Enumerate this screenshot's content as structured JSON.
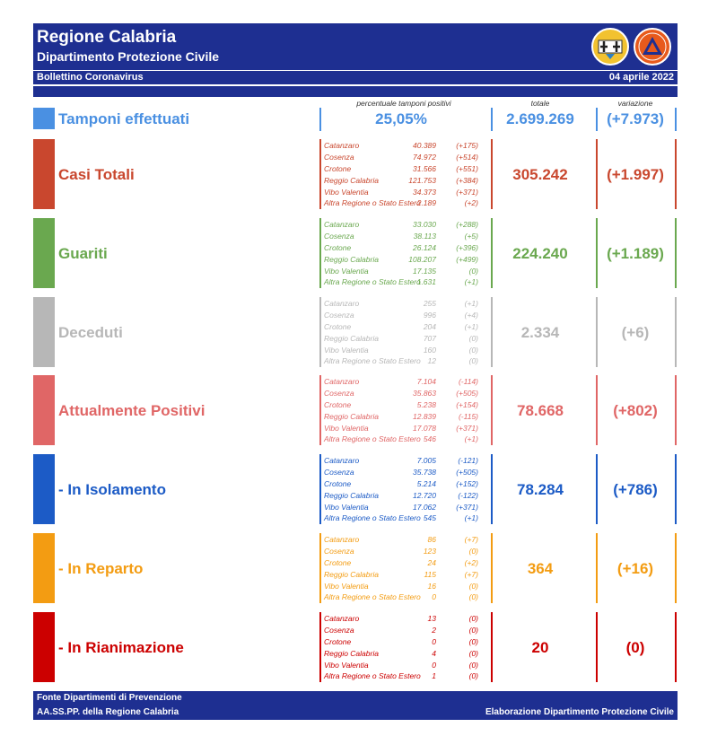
{
  "header": {
    "title": "Regione Calabria",
    "subtitle": "Dipartimento Protezione Civile",
    "bulletin": "Bollettino Coronavirus",
    "date": "04 aprile 2022",
    "logo1_icon": "calabria-crest-icon",
    "logo2_icon": "protezione-civile-logo-icon",
    "logo2_text": "PROTEZIONE CIVILE"
  },
  "columns": {
    "percent_label": "percentuale tamponi positivi",
    "total_label": "totale",
    "variation_label": "variazione"
  },
  "tamponi": {
    "label": "Tamponi effettuati",
    "percent": "25,05%",
    "total": "2.699.269",
    "variation": "(+7.973)",
    "color": "#4a90e2"
  },
  "sections": [
    {
      "key": "casi",
      "label": "Casi Totali",
      "color": "#c9472e",
      "total": "305.242",
      "variation": "(+1.997)",
      "provinces": [
        {
          "name": "Catanzaro",
          "value": "40.389",
          "delta": "(+175)"
        },
        {
          "name": "Cosenza",
          "value": "74.972",
          "delta": "(+514)"
        },
        {
          "name": "Crotone",
          "value": "31.566",
          "delta": "(+551)"
        },
        {
          "name": "Reggio Calabria",
          "value": "121.753",
          "delta": "(+384)"
        },
        {
          "name": "Vibo Valentia",
          "value": "34.373",
          "delta": "(+371)"
        },
        {
          "name": "Altra Regione o Stato Estero",
          "value": "2.189",
          "delta": "(+2)"
        }
      ]
    },
    {
      "key": "guariti",
      "label": "Guariti",
      "color": "#6aa84f",
      "total": "224.240",
      "variation": "(+1.189)",
      "provinces": [
        {
          "name": "Catanzaro",
          "value": "33.030",
          "delta": "(+288)"
        },
        {
          "name": "Cosenza",
          "value": "38.113",
          "delta": "(+5)"
        },
        {
          "name": "Crotone",
          "value": "26.124",
          "delta": "(+396)"
        },
        {
          "name": "Reggio Calabria",
          "value": "108.207",
          "delta": "(+499)"
        },
        {
          "name": "Vibo Valentia",
          "value": "17.135",
          "delta": "(0)"
        },
        {
          "name": "Altra Regione o Stato Estero",
          "value": "1.631",
          "delta": "(+1)"
        }
      ]
    },
    {
      "key": "deceduti",
      "label": "Deceduti",
      "color": "#b7b7b7",
      "total": "2.334",
      "variation": "(+6)",
      "provinces": [
        {
          "name": "Catanzaro",
          "value": "255",
          "delta": "(+1)"
        },
        {
          "name": "Cosenza",
          "value": "996",
          "delta": "(+4)"
        },
        {
          "name": "Crotone",
          "value": "204",
          "delta": "(+1)"
        },
        {
          "name": "Reggio Calabria",
          "value": "707",
          "delta": "(0)"
        },
        {
          "name": "Vibo Valentia",
          "value": "160",
          "delta": "(0)"
        },
        {
          "name": "Altra Regione o Stato Estero",
          "value": "12",
          "delta": "(0)"
        }
      ]
    },
    {
      "key": "positivi",
      "label": "Attualmente Positivi",
      "color": "#e06666",
      "total": "78.668",
      "variation": "(+802)",
      "provinces": [
        {
          "name": "Catanzaro",
          "value": "7.104",
          "delta": "(-114)"
        },
        {
          "name": "Cosenza",
          "value": "35.863",
          "delta": "(+505)"
        },
        {
          "name": "Crotone",
          "value": "5.238",
          "delta": "(+154)"
        },
        {
          "name": "Reggio Calabria",
          "value": "12.839",
          "delta": "(-115)"
        },
        {
          "name": "Vibo Valentia",
          "value": "17.078",
          "delta": "(+371)"
        },
        {
          "name": "Altra Regione o Stato Estero",
          "value": "546",
          "delta": "(+1)"
        }
      ]
    },
    {
      "key": "isolamento",
      "label": " - In Isolamento",
      "color": "#1c5bc6",
      "total": "78.284",
      "variation": "(+786)",
      "provinces": [
        {
          "name": "Catanzaro",
          "value": "7.005",
          "delta": "(-121)"
        },
        {
          "name": "Cosenza",
          "value": "35.738",
          "delta": "(+505)"
        },
        {
          "name": "Crotone",
          "value": "5.214",
          "delta": "(+152)"
        },
        {
          "name": "Reggio Calabria",
          "value": "12.720",
          "delta": "(-122)"
        },
        {
          "name": "Vibo Valentia",
          "value": "17.062",
          "delta": "(+371)"
        },
        {
          "name": "Altra Regione o Stato Estero",
          "value": "545",
          "delta": "(+1)"
        }
      ]
    },
    {
      "key": "reparto",
      "label": " - In Reparto",
      "color": "#f39c12",
      "total": "364",
      "variation": "(+16)",
      "provinces": [
        {
          "name": "Catanzaro",
          "value": "86",
          "delta": "(+7)"
        },
        {
          "name": "Cosenza",
          "value": "123",
          "delta": "(0)"
        },
        {
          "name": "Crotone",
          "value": "24",
          "delta": "(+2)"
        },
        {
          "name": "Reggio Calabria",
          "value": "115",
          "delta": "(+7)"
        },
        {
          "name": "Vibo Valentia",
          "value": "16",
          "delta": "(0)"
        },
        {
          "name": "Altra Regione o Stato Estero",
          "value": "0",
          "delta": "(0)"
        }
      ]
    },
    {
      "key": "rianimazione",
      "label": " - In Rianimazione",
      "color": "#cc0000",
      "total": "20",
      "variation": "(0)",
      "provinces": [
        {
          "name": "Catanzaro",
          "value": "13",
          "delta": "(0)"
        },
        {
          "name": "Cosenza",
          "value": "2",
          "delta": "(0)"
        },
        {
          "name": "Crotone",
          "value": "0",
          "delta": "(0)"
        },
        {
          "name": "Reggio Calabria",
          "value": "4",
          "delta": "(0)"
        },
        {
          "name": "Vibo Valentia",
          "value": "0",
          "delta": "(0)"
        },
        {
          "name": "Altra Regione o Stato Estero",
          "value": "1",
          "delta": "(0)"
        }
      ]
    }
  ],
  "footer": {
    "line1": "Fonte Dipartimenti di Prevenzione",
    "line2": "AA.SS.PP.  della Regione Calabria",
    "credit": "Elaborazione Dipartimento Protezione Civile"
  }
}
